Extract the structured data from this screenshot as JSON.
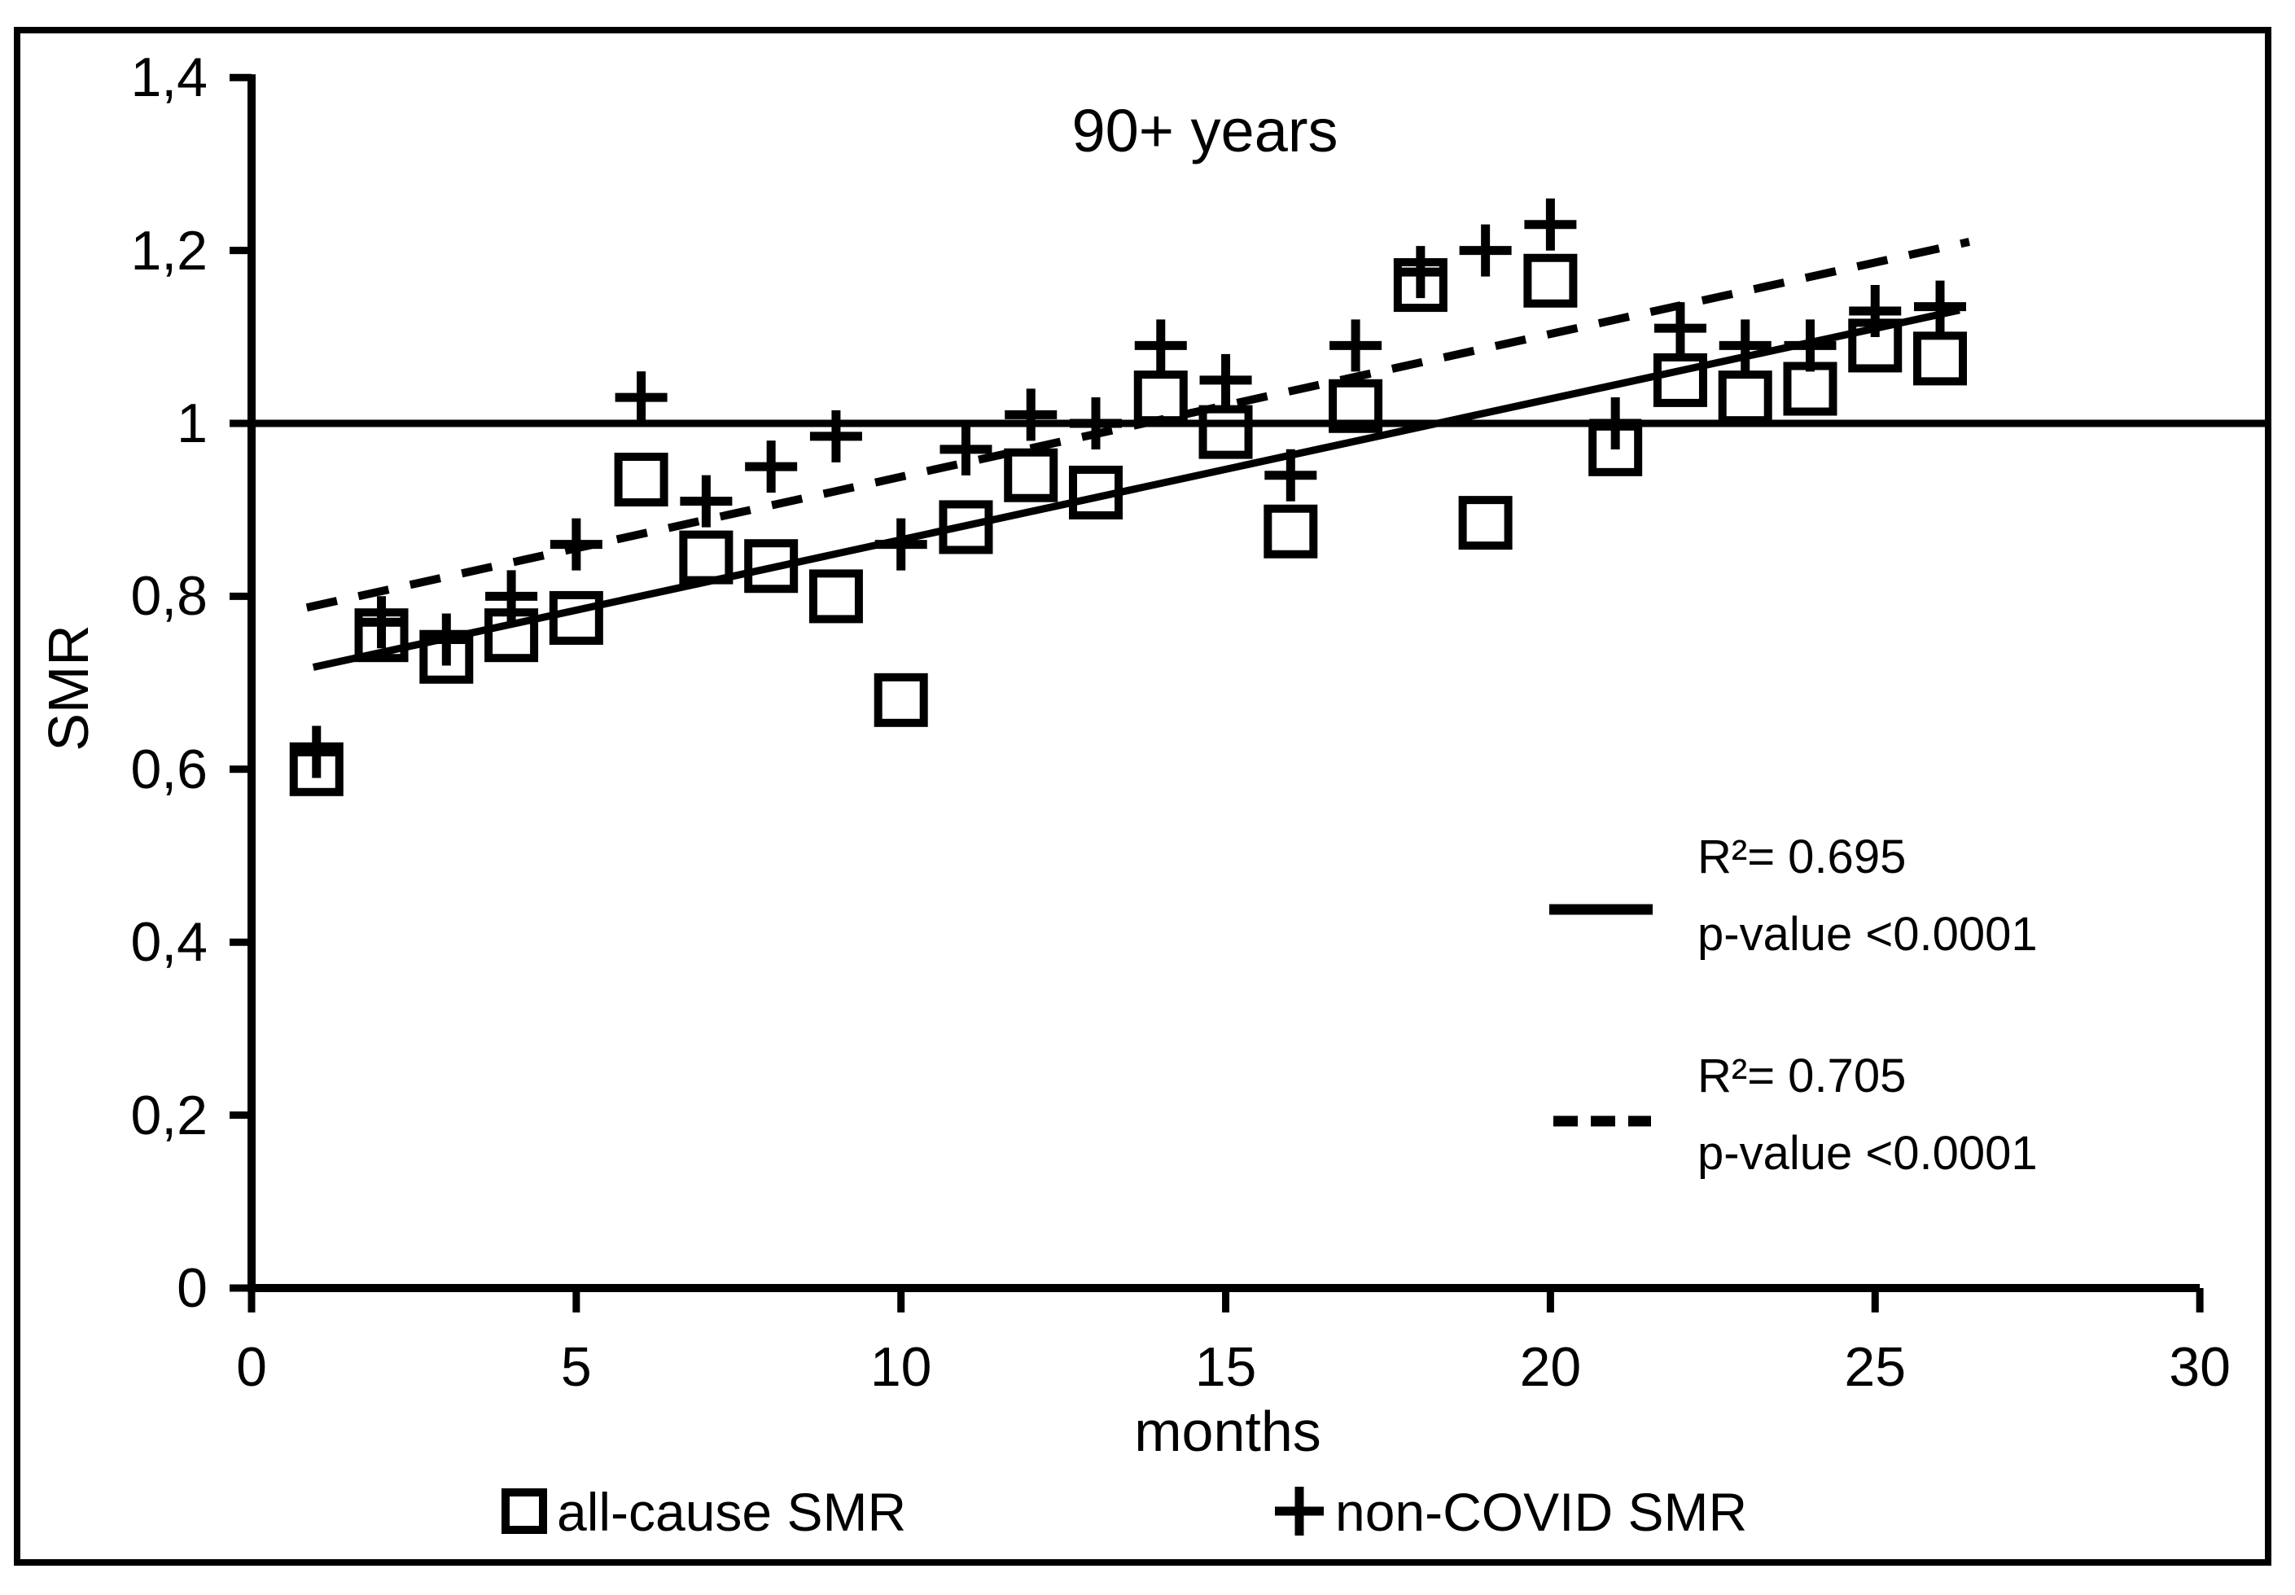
{
  "chart_data": {
    "type": "scatter",
    "title": "90+ years",
    "xlabel": "months",
    "ylabel": "SMR",
    "xlim": [
      0,
      30
    ],
    "ylim": [
      0,
      1.4
    ],
    "grid": false,
    "x_ticks": [
      0,
      5,
      10,
      15,
      20,
      25,
      30
    ],
    "x_tick_labels": [
      "0",
      "5",
      "10",
      "15",
      "20",
      "25",
      "30"
    ],
    "y_ticks": [
      0,
      0.2,
      0.4,
      0.6,
      0.8,
      1.0,
      1.2,
      1.4
    ],
    "y_tick_labels": [
      "0",
      "0,2",
      "0,4",
      "0,6",
      "0,8",
      "1",
      "1,2",
      "1,4"
    ],
    "reference_line_y": 1.0,
    "months": [
      1,
      2,
      3,
      4,
      5,
      6,
      7,
      8,
      9,
      10,
      11,
      12,
      13,
      14,
      15,
      16,
      17,
      18,
      19,
      20,
      21,
      22,
      23,
      24,
      25,
      26
    ],
    "series": [
      {
        "name": "all-cause SMR",
        "marker": "square",
        "values": [
          0.6,
          0.755,
          0.73,
          0.755,
          0.775,
          0.935,
          0.845,
          0.835,
          0.8,
          0.68,
          0.88,
          0.94,
          0.92,
          1.03,
          0.99,
          0.875,
          1.02,
          1.16,
          0.885,
          1.165,
          0.97,
          1.05,
          1.03,
          1.04,
          1.09,
          1.075
        ]
      },
      {
        "name": "non-COVID SMR",
        "marker": "plus",
        "values": [
          0.62,
          0.77,
          0.75,
          0.8,
          0.86,
          1.03,
          0.91,
          0.95,
          0.985,
          0.86,
          0.97,
          1.01,
          1.0,
          1.09,
          1.05,
          0.94,
          1.09,
          1.175,
          1.2,
          1.23,
          1.0,
          1.11,
          1.09,
          1.09,
          1.13,
          1.135
        ]
      }
    ],
    "trendlines": [
      {
        "series": "all-cause SMR",
        "style": "solid",
        "x_start": 0.95,
        "y_start": 0.718,
        "x_end": 26.3,
        "y_end": 1.131,
        "r2_label": "R²= 0.695",
        "p_label": "p-value <0.0001"
      },
      {
        "series": "non-COVID SMR",
        "style": "dashed",
        "x_start": 0.85,
        "y_start": 0.787,
        "x_end": 26.45,
        "y_end": 1.21,
        "r2_label": "R²= 0.705",
        "p_label": "p-value <0.0001"
      }
    ],
    "legend": {
      "position": "bottom",
      "entries": [
        {
          "label": "all-cause SMR",
          "marker": "square"
        },
        {
          "label": "non-COVID SMR",
          "marker": "plus"
        }
      ]
    },
    "colors": {
      "foreground": "#000000",
      "background": "#ffffff"
    }
  }
}
